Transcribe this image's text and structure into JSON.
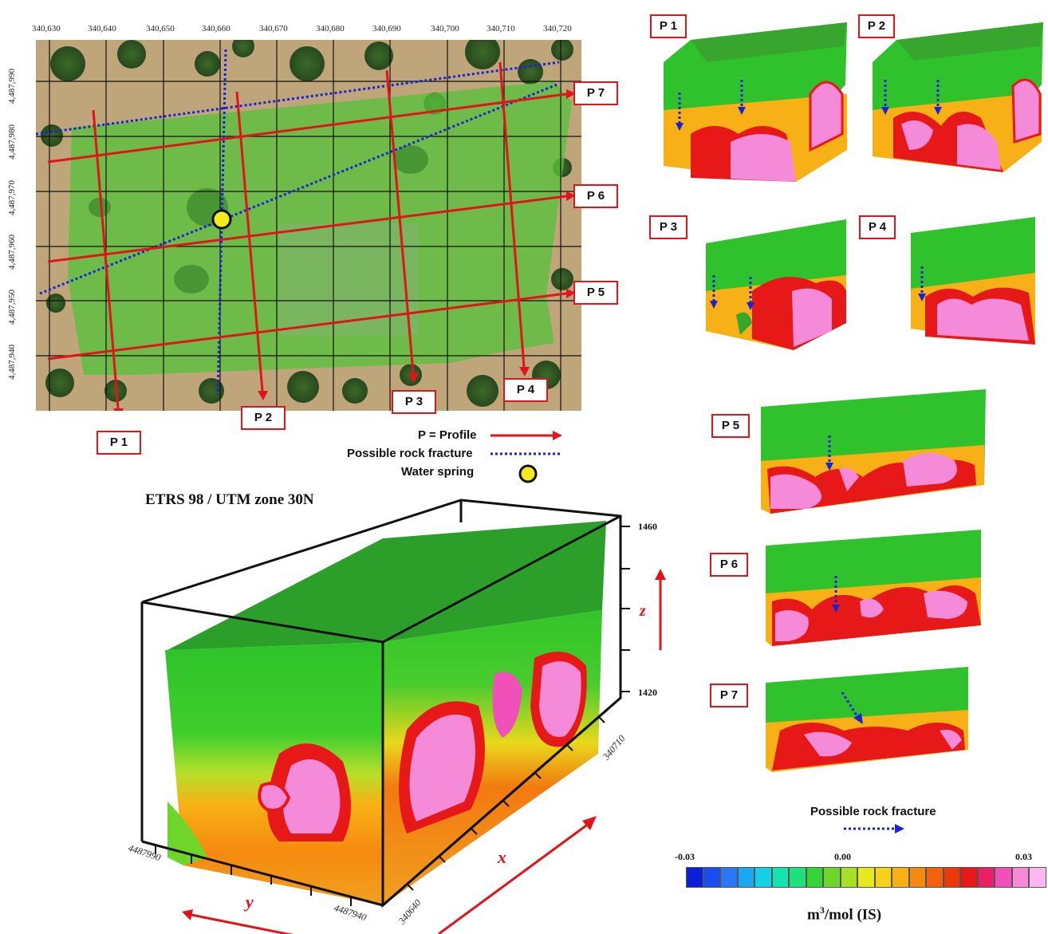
{
  "map": {
    "x_ticks": [
      "340,630",
      "340,640",
      "340,650",
      "340,660",
      "340,670",
      "340,680",
      "340,690",
      "340,700",
      "340,710",
      "340,720"
    ],
    "y_ticks": [
      "4,487,990",
      "4,487,980",
      "4,487,970",
      "4,487,960",
      "4,487,950",
      "4,487,940"
    ],
    "crs_label": "ETRS 98 / UTM zone 30N",
    "profile_labels": [
      "P 1",
      "P 2",
      "P 3",
      "P 4",
      "P 5",
      "P 6",
      "P 7"
    ]
  },
  "legend": {
    "profile": "P = Profile",
    "fracture": "Possible rock fracture",
    "spring": "Water spring"
  },
  "block3d": {
    "z_ticks": [
      "1460",
      "1420"
    ],
    "z_axis": "z",
    "x_axis": "x",
    "y_axis": "y",
    "x_tick_a": "340640",
    "x_tick_b": "340710",
    "y_tick_a": "4487990",
    "y_tick_b": "4487940"
  },
  "sections": {
    "labels": [
      "P 1",
      "P 2",
      "P 3",
      "P 4",
      "P 5",
      "P 6",
      "P 7"
    ],
    "fracture_legend": "Possible rock fracture"
  },
  "colorbar": {
    "min_label": "-0.03",
    "mid_label": "0.00",
    "max_label": "0.03",
    "unit_base": "m",
    "unit_sup": "3",
    "unit_rest": "/mol (IS)",
    "colors": [
      "#0a1fd6",
      "#1a4cf0",
      "#2a78f5",
      "#1aa8f2",
      "#15d0e6",
      "#17e3b0",
      "#1fe07a",
      "#33d636",
      "#6ed62a",
      "#a8e027",
      "#e4ea1f",
      "#f7d21a",
      "#f7b015",
      "#f58a10",
      "#f0620c",
      "#ea3a0c",
      "#e61818",
      "#e8206a",
      "#f050b8",
      "#f58ad8",
      "#f9b8ee"
    ]
  }
}
